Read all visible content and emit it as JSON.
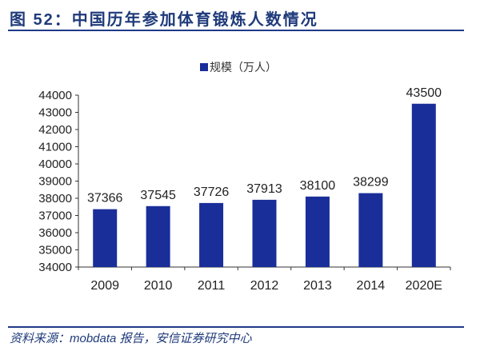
{
  "title": "图 52：中国历年参加体育锻炼人数情况",
  "source": "资料来源：mobdata 报告，安信证券研究中心",
  "colors": {
    "bar": "#1a2e99",
    "accent": "#1f3a8a"
  },
  "chart_data": {
    "type": "bar",
    "title": "图 52：中国历年参加体育锻炼人数情况",
    "legend": [
      "规模（万人）"
    ],
    "legend_position": "top-center",
    "categories": [
      "2009",
      "2010",
      "2011",
      "2012",
      "2013",
      "2014",
      "2020E"
    ],
    "values": [
      37366,
      37545,
      37726,
      37913,
      38100,
      38299,
      43500
    ],
    "yticks": [
      34000,
      35000,
      36000,
      37000,
      38000,
      39000,
      40000,
      41000,
      42000,
      43000,
      44000
    ],
    "ylim": [
      34000,
      44000
    ],
    "xlabel": "",
    "ylabel": "",
    "grid": false
  }
}
